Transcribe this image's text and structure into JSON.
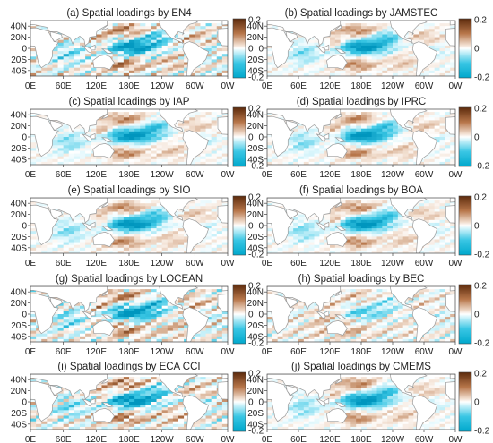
{
  "chart_data": {
    "type": "heatmap",
    "panels": [
      {
        "title": "(a) Spatial loadings by EN4",
        "pattern": "noisy"
      },
      {
        "title": "(b) Spatial loadings by JAMSTEC",
        "pattern": "smooth"
      },
      {
        "title": "(c) Spatial loadings by IAP",
        "pattern": "smooth"
      },
      {
        "title": "(d) Spatial loadings by IPRC",
        "pattern": "smooth"
      },
      {
        "title": "(e) Spatial loadings by SIO",
        "pattern": "smooth"
      },
      {
        "title": "(f) Spatial loadings by BOA",
        "pattern": "smooth"
      },
      {
        "title": "(g) Spatial loadings by LOCEAN",
        "pattern": "noisy"
      },
      {
        "title": "(h) Spatial loadings by BEC",
        "pattern": "weak"
      },
      {
        "title": "(i) Spatial loadings by ECA CCI",
        "pattern": "noisy"
      },
      {
        "title": "(j) Spatial loadings by CMEMS",
        "pattern": "smooth"
      }
    ],
    "x_ticks": [
      "0E",
      "60E",
      "120E",
      "180E",
      "120W",
      "60W",
      "0W"
    ],
    "y_ticks": [
      "40N",
      "20N",
      "0",
      "20S",
      "40S"
    ],
    "colorbar_ticks": [
      "0.2",
      "0",
      "-0.2"
    ],
    "vmin": -0.2,
    "vmax": 0.2,
    "colors": {
      "negative_strong": "#00a3c7",
      "negative_light": "#bfeef8",
      "neutral": "#ffffff",
      "positive_light": "#f5dfd0",
      "positive_strong": "#7a3d14",
      "land": "#ffffff",
      "coast": "#9a9a9a"
    }
  }
}
